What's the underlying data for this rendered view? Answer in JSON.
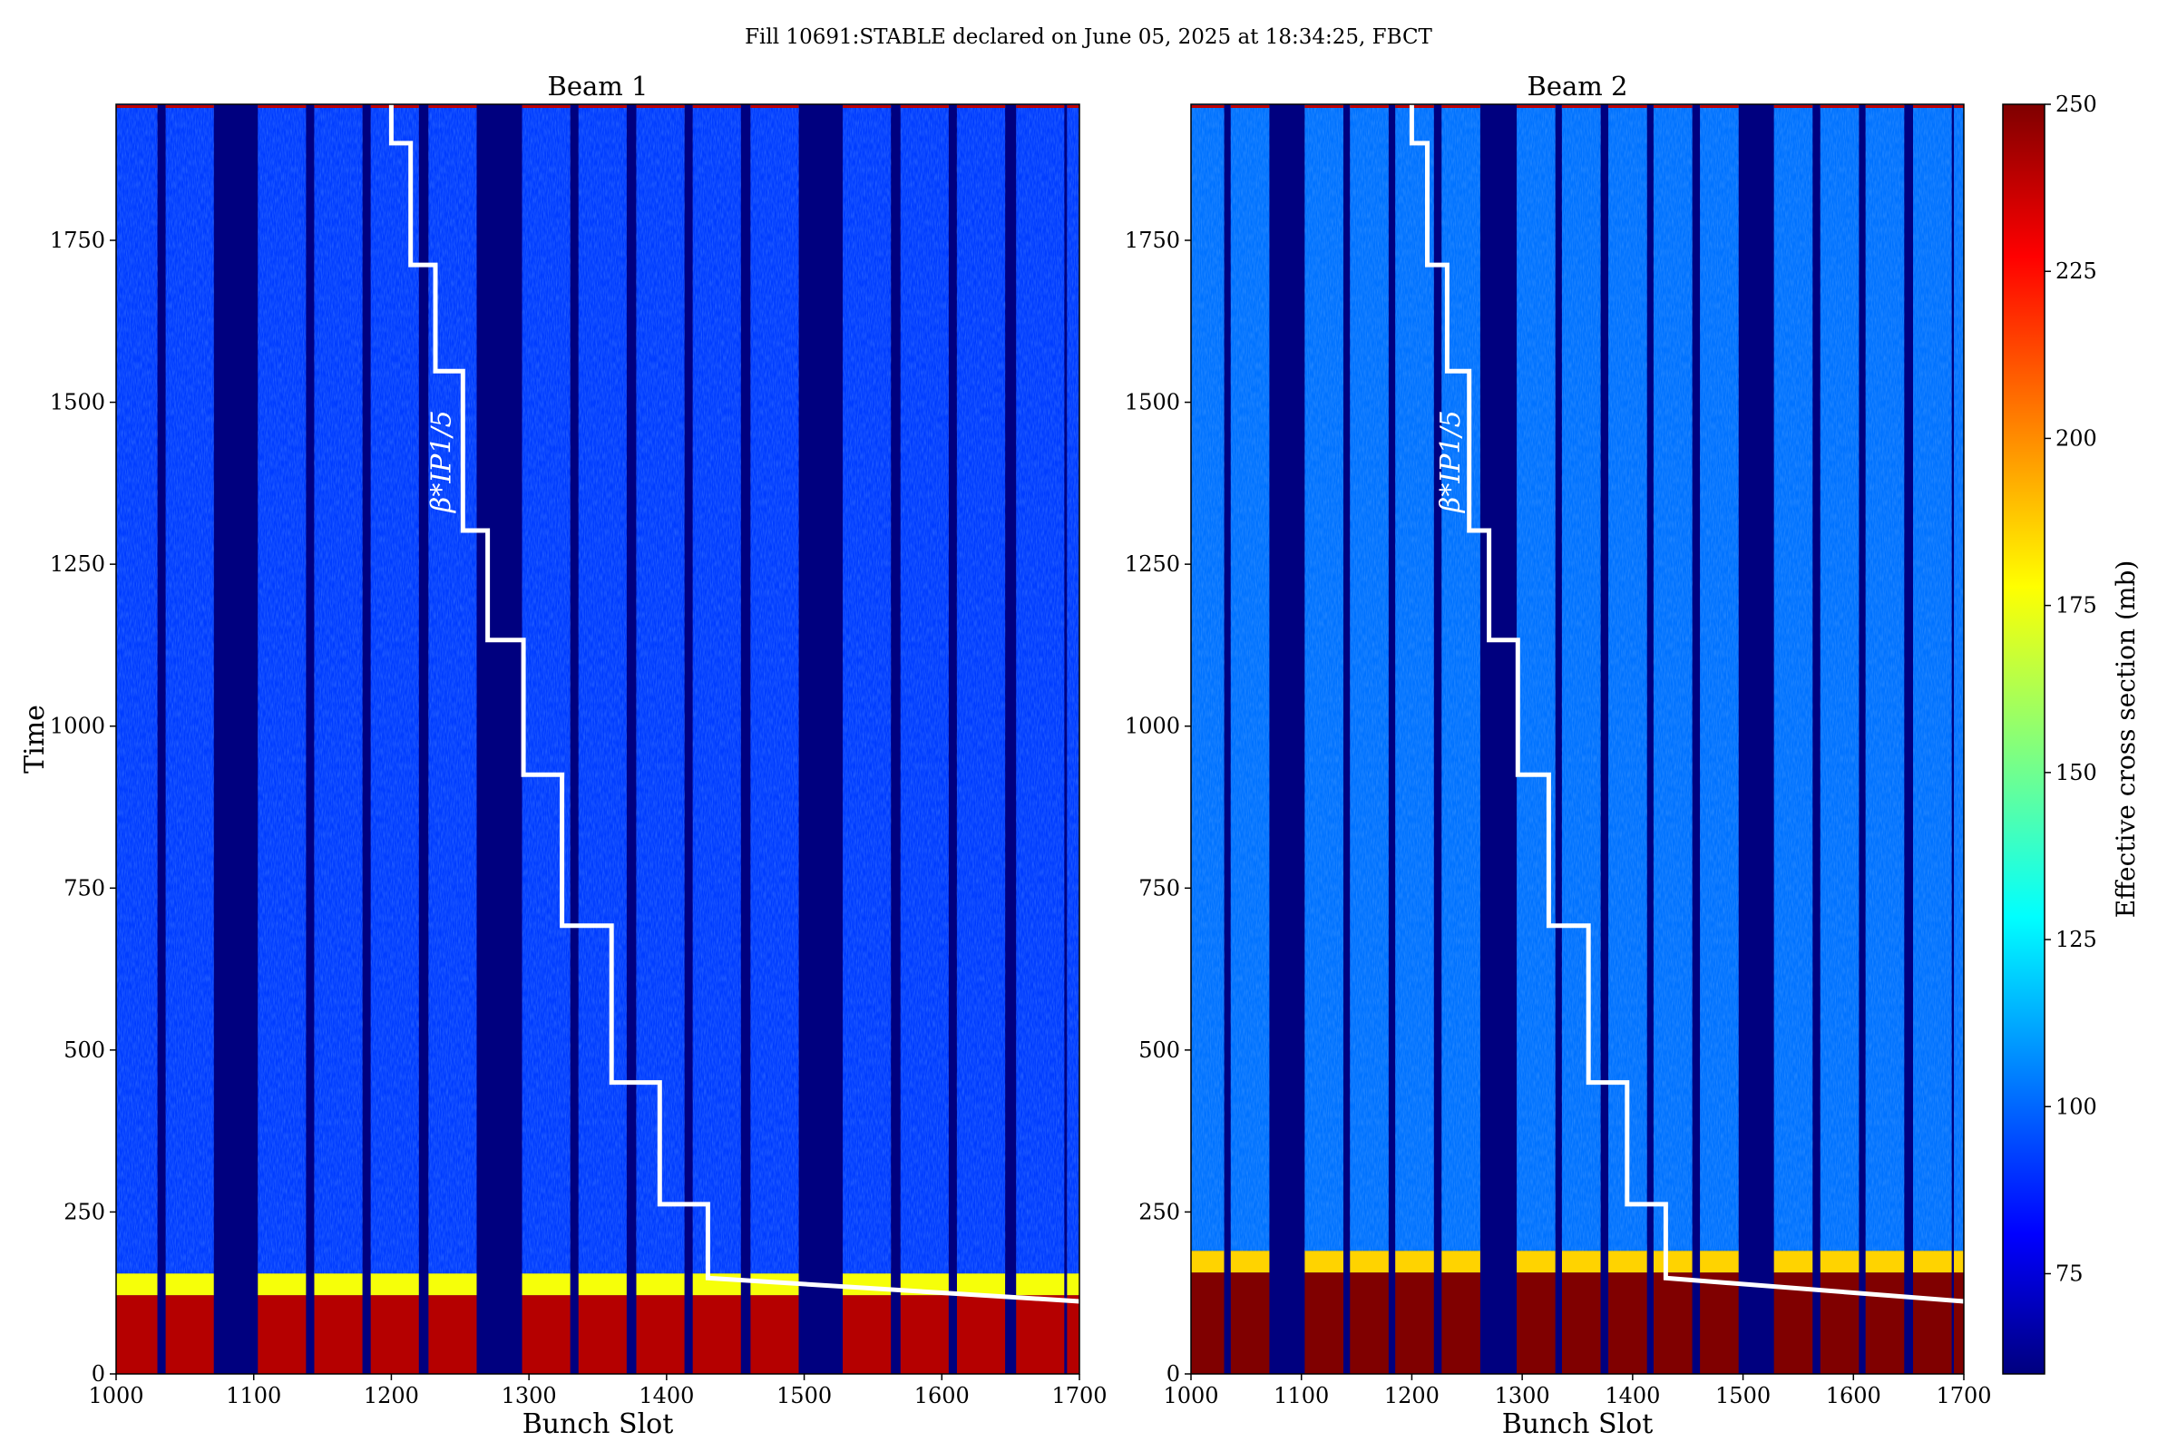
{
  "title": "Fill 10691:STABLE declared on June 05, 2025 at 18:34:25, FBCT",
  "colorbar": {
    "label": "Effective cross section (mb)",
    "range": [
      60,
      250
    ],
    "ticks": [
      75,
      100,
      125,
      150,
      175,
      200,
      225,
      250
    ],
    "colormap": "jet"
  },
  "colors": {
    "background_empty": "#00007f",
    "overlay_line": "#ffffff"
  },
  "chart_data": [
    {
      "type": "heatmap",
      "title": "Beam 1",
      "xlabel": "Bunch Slot",
      "ylabel": "Time",
      "xlim": [
        1000,
        1700
      ],
      "ylim": [
        0,
        1960
      ],
      "xticks": [
        1000,
        1100,
        1200,
        1300,
        1400,
        1500,
        1600,
        1700
      ],
      "yticks": [
        0,
        250,
        500,
        750,
        1000,
        1250,
        1500,
        1750
      ],
      "filled_slot_trains": [
        [
          1000,
          1030
        ],
        [
          1036,
          1071
        ],
        [
          1103,
          1138
        ],
        [
          1144,
          1179
        ],
        [
          1185,
          1220
        ],
        [
          1227,
          1262
        ],
        [
          1295,
          1330
        ],
        [
          1336,
          1371
        ],
        [
          1378,
          1413
        ],
        [
          1419,
          1454
        ],
        [
          1461,
          1496
        ],
        [
          1528,
          1563
        ],
        [
          1570,
          1605
        ],
        [
          1611,
          1646
        ],
        [
          1654,
          1689
        ],
        [
          1691,
          1700
        ]
      ],
      "intensity": {
        "high_until_time": 155,
        "typical_high_mb": 240,
        "typical_low_mb": 95
      },
      "annotation": "β*IP1/5"
    },
    {
      "type": "heatmap",
      "title": "Beam 2",
      "xlabel": "Bunch Slot",
      "ylabel": "",
      "xlim": [
        1000,
        1700
      ],
      "ylim": [
        0,
        1960
      ],
      "xticks": [
        1000,
        1100,
        1200,
        1300,
        1400,
        1500,
        1600,
        1700
      ],
      "yticks": [
        0,
        250,
        500,
        750,
        1000,
        1250,
        1500,
        1750
      ],
      "filled_slot_trains": [
        [
          1000,
          1030
        ],
        [
          1036,
          1071
        ],
        [
          1103,
          1138
        ],
        [
          1144,
          1179
        ],
        [
          1185,
          1220
        ],
        [
          1227,
          1262
        ],
        [
          1295,
          1330
        ],
        [
          1336,
          1371
        ],
        [
          1378,
          1413
        ],
        [
          1419,
          1454
        ],
        [
          1461,
          1496
        ],
        [
          1528,
          1563
        ],
        [
          1570,
          1605
        ],
        [
          1611,
          1646
        ],
        [
          1654,
          1689
        ],
        [
          1691,
          1700
        ]
      ],
      "intensity": {
        "high_until_time": 190,
        "typical_high_mb": 250,
        "typical_low_mb": 105
      },
      "annotation": "β*IP1/5"
    }
  ],
  "beta_star_step_line": {
    "x": [
      1200,
      1200,
      1214,
      1214,
      1232,
      1232,
      1252,
      1252,
      1270,
      1270,
      1296,
      1296,
      1324,
      1324,
      1360,
      1360,
      1395,
      1395,
      1430,
      1430,
      1700
    ],
    "y": [
      1960,
      1900,
      1900,
      1712,
      1712,
      1548,
      1548,
      1302,
      1302,
      1133,
      1133,
      925,
      925,
      692,
      692,
      450,
      450,
      262,
      262,
      148,
      112
    ]
  }
}
